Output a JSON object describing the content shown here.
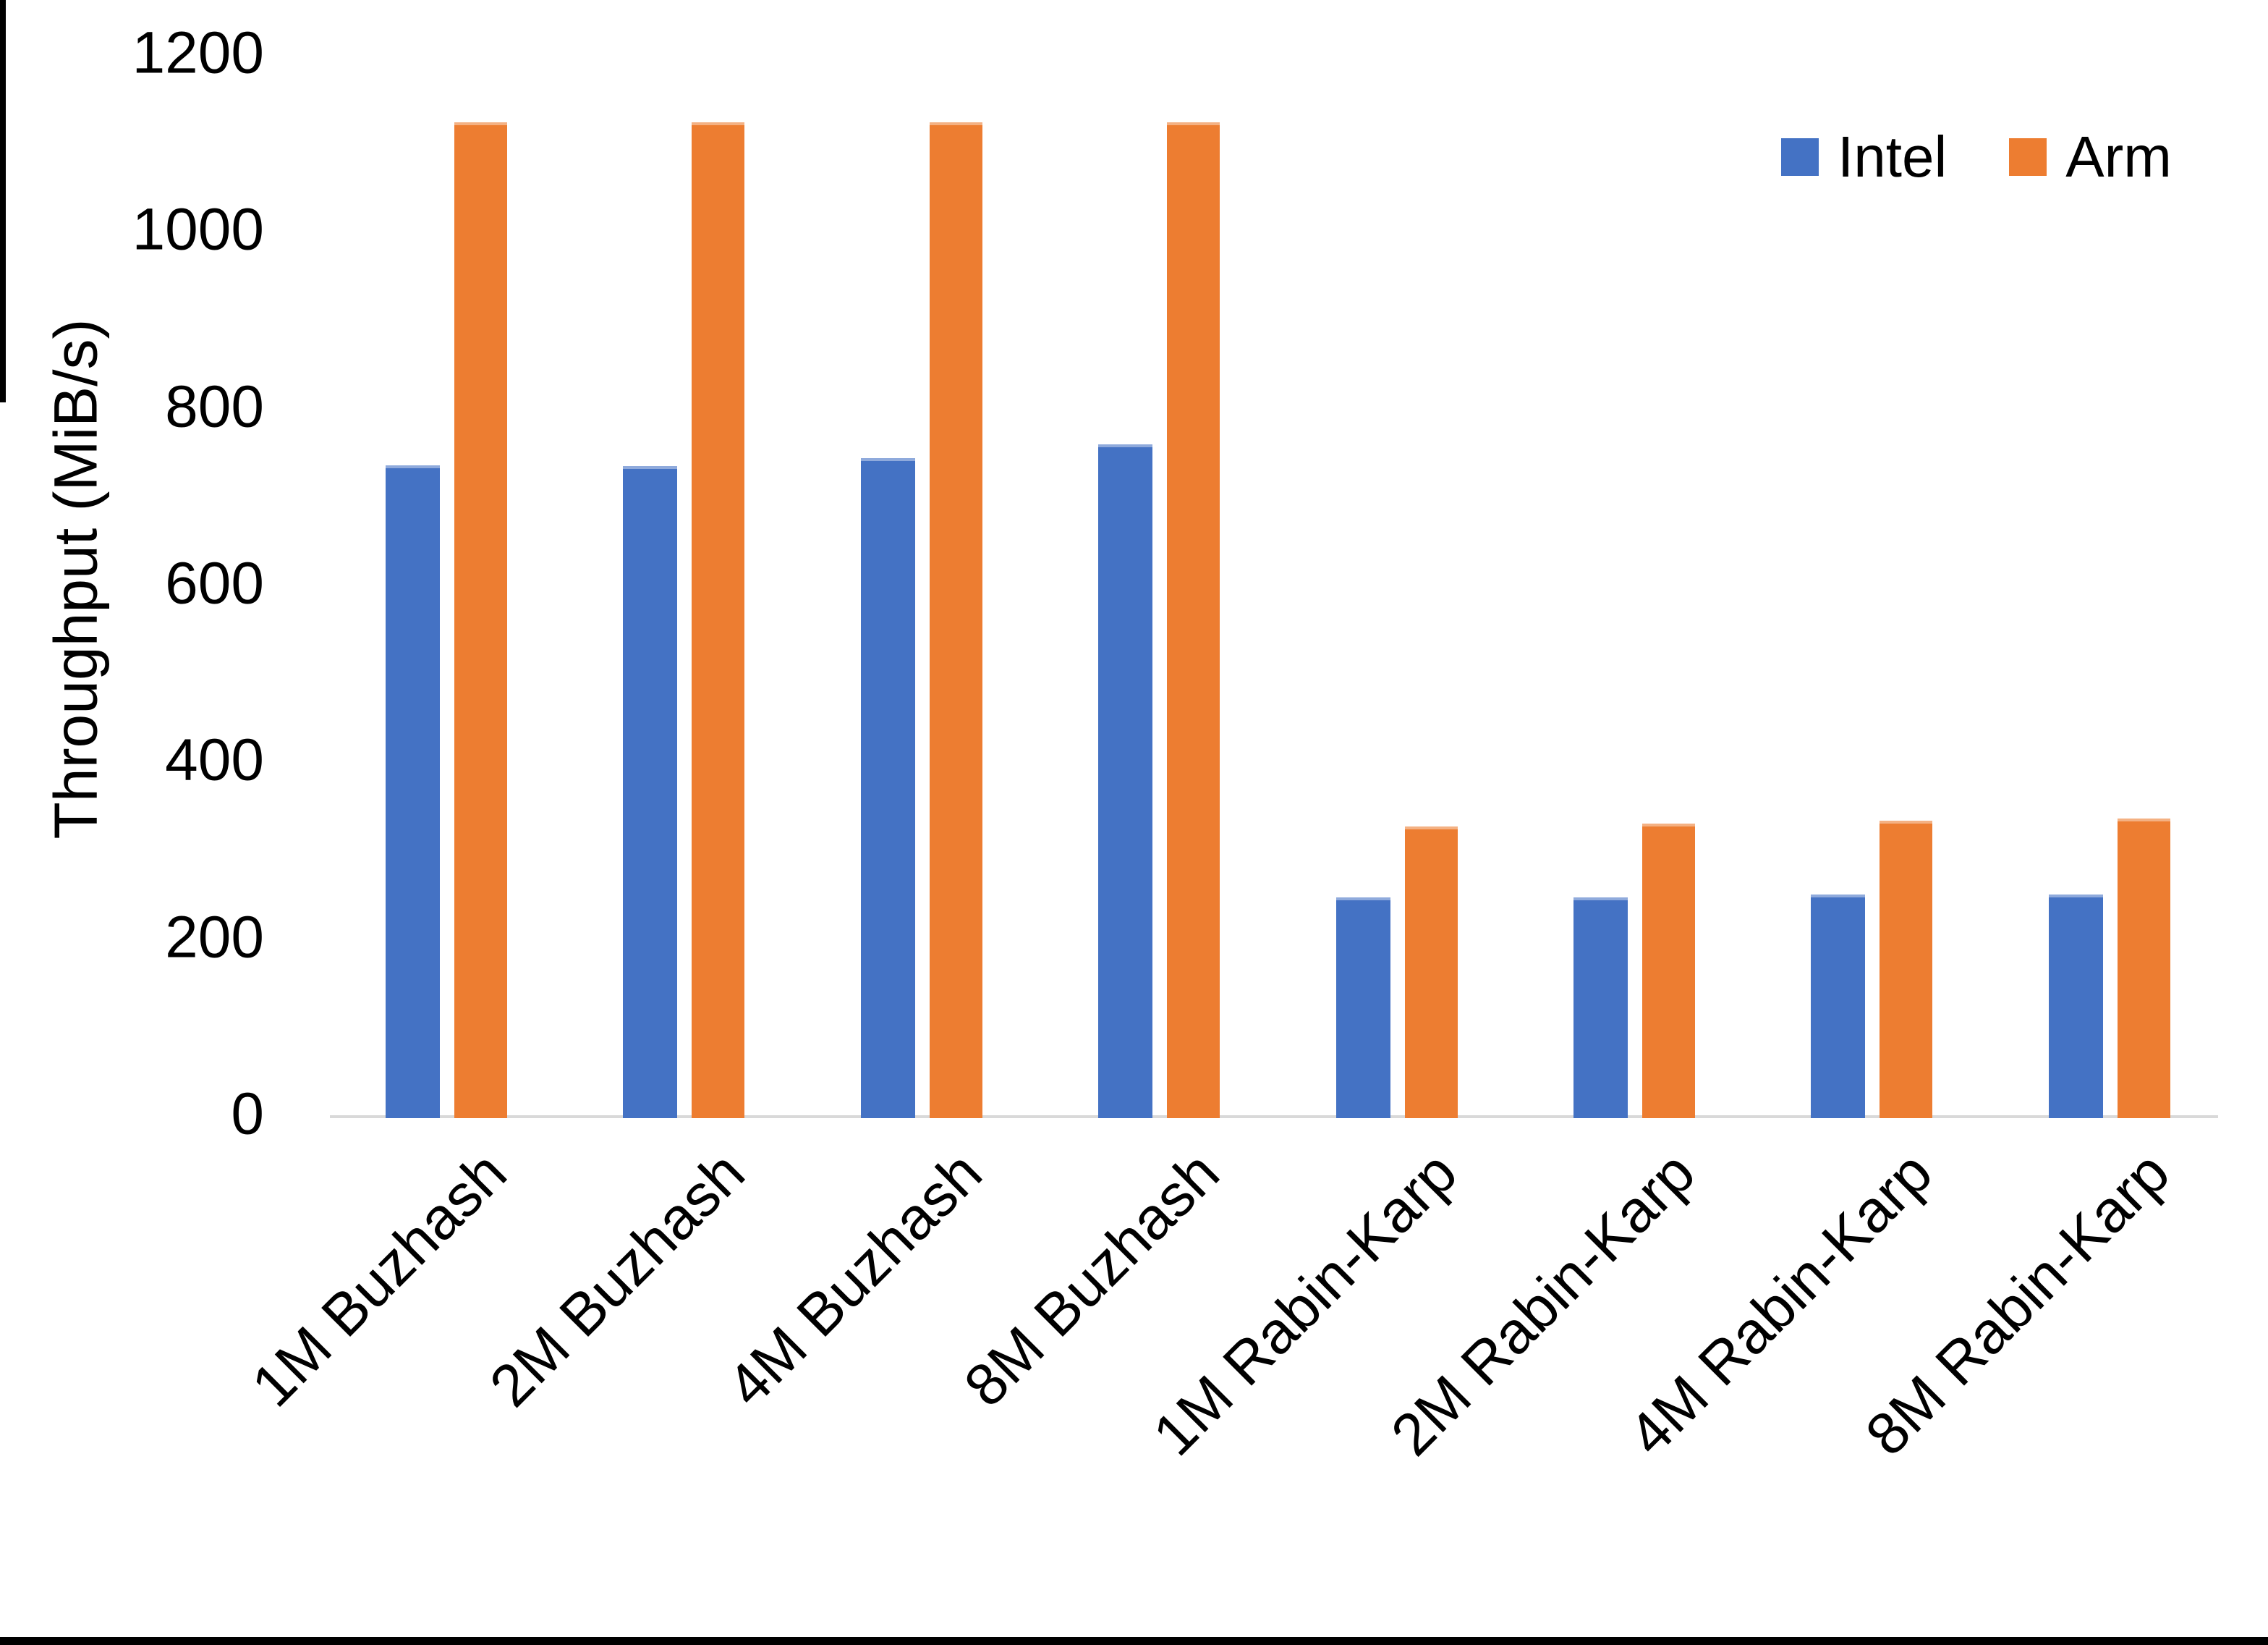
{
  "chart_data": {
    "type": "bar",
    "title": "",
    "xlabel": "",
    "ylabel": "Throughput (MiB/s)",
    "ylim": [
      0,
      1200
    ],
    "yticks": [
      0,
      200,
      400,
      600,
      800,
      1000,
      1200
    ],
    "grid": false,
    "legend_position": "top-right",
    "categories": [
      "1M Buzhash",
      "2M Buzhash",
      "4M Buzhash",
      "8M Buzhash",
      "1M Rabin-Karp",
      "2M Rabin-Karp",
      "4M Rabin-Karp",
      "8M Rabin-Karp"
    ],
    "series": [
      {
        "name": "Intel",
        "color": "#4472C4",
        "edge_color": "#8FAADC",
        "values": [
          735,
          734,
          743,
          759,
          246,
          246,
          250,
          250
        ]
      },
      {
        "name": "Arm",
        "color": "#ED7D31",
        "edge_color": "#F4B183",
        "values": [
          1123,
          1123,
          1123,
          1123,
          327,
          330,
          333,
          336
        ]
      }
    ]
  },
  "colors": {
    "axis_line": "#D9D9D9",
    "text": "#000000",
    "frame_edge": "#000000"
  }
}
